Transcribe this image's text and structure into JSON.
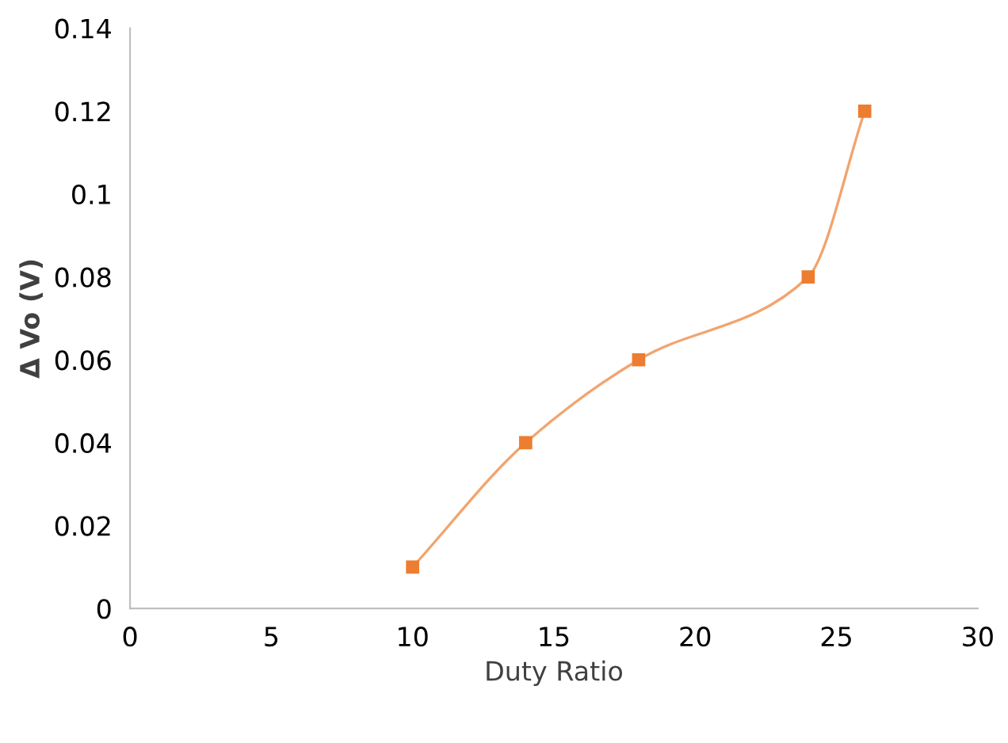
{
  "chart_data": {
    "type": "line",
    "xlabel": "Duty Ratio",
    "ylabel": "Δ Vo (V)",
    "series": [
      {
        "color": "#ed7d31",
        "x": [
          10,
          14,
          18,
          24,
          26
        ],
        "values": [
          0.01,
          0.04,
          0.06,
          0.08,
          0.12
        ]
      }
    ],
    "xlim": [
      0,
      30
    ],
    "xticks": [
      0,
      5,
      10,
      15,
      20,
      25,
      30
    ],
    "ylim": [
      0,
      0.14
    ],
    "yticks": [
      0,
      0.02,
      0.04,
      0.06,
      0.08,
      0.1,
      0.12,
      0.14
    ],
    "marker": "square",
    "line_style": "solid",
    "grid": false,
    "legend": false
  }
}
